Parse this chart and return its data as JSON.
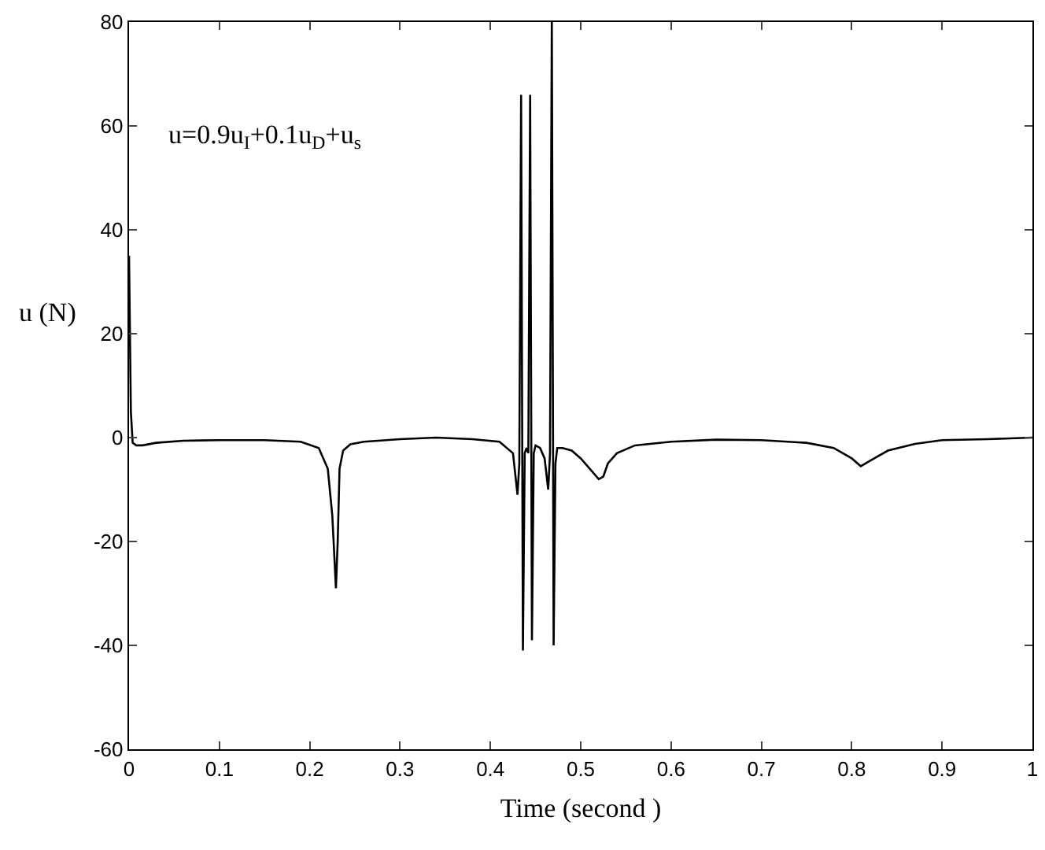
{
  "chart_data": {
    "type": "line",
    "xlabel": "Time (second )",
    "ylabel": "u (N)",
    "annotations": [
      "u=0.9u$_{I}$+0.1u$_{D}$+u$_{s}$"
    ],
    "x": [
      0,
      0.002,
      0.004,
      0.008,
      0.015,
      0.03,
      0.06,
      0.1,
      0.15,
      0.19,
      0.21,
      0.22,
      0.225,
      0.229,
      0.231,
      0.233,
      0.237,
      0.245,
      0.26,
      0.3,
      0.34,
      0.38,
      0.41,
      0.425,
      0.43,
      0.432,
      0.434,
      0.436,
      0.438,
      0.44,
      0.442,
      0.444,
      0.446,
      0.448,
      0.45,
      0.455,
      0.46,
      0.464,
      0.466,
      0.468,
      0.47,
      0.472,
      0.474,
      0.48,
      0.49,
      0.5,
      0.51,
      0.52,
      0.525,
      0.53,
      0.54,
      0.56,
      0.6,
      0.65,
      0.7,
      0.75,
      0.78,
      0.8,
      0.81,
      0.82,
      0.84,
      0.87,
      0.9,
      0.95,
      1
    ],
    "series": [
      {
        "color": "#000000",
        "values": [
          35,
          5,
          -1,
          -1.5,
          -1.5,
          -1,
          -0.6,
          -0.5,
          -0.5,
          -0.8,
          -2,
          -6,
          -15,
          -29,
          -20,
          -6,
          -2.5,
          -1.3,
          -0.8,
          -0.3,
          0,
          -0.3,
          -0.8,
          -3,
          -11,
          -5,
          66,
          -41,
          -3,
          -2,
          -3,
          66,
          -39,
          -3,
          -1.5,
          -2,
          -4,
          -10,
          -3,
          80,
          -40,
          -5,
          -2,
          -2,
          -2.5,
          -4,
          -6,
          -8,
          -7.5,
          -5,
          -3,
          -1.5,
          -0.8,
          -0.4,
          -0.5,
          -1,
          -2,
          -4,
          -5.5,
          -4.5,
          -2.5,
          -1.2,
          -0.5,
          -0.3,
          0
        ]
      }
    ],
    "xlim": [
      0,
      1
    ],
    "xticks": [
      0,
      0.1,
      0.2,
      0.3,
      0.4,
      0.5,
      0.6,
      0.7,
      0.8,
      0.9,
      1
    ],
    "ylim": [
      -60,
      80
    ],
    "yticks": [
      -60,
      -40,
      -20,
      0,
      20,
      40,
      60,
      80
    ],
    "grid": false,
    "marker": "none",
    "line_style": "solid"
  }
}
